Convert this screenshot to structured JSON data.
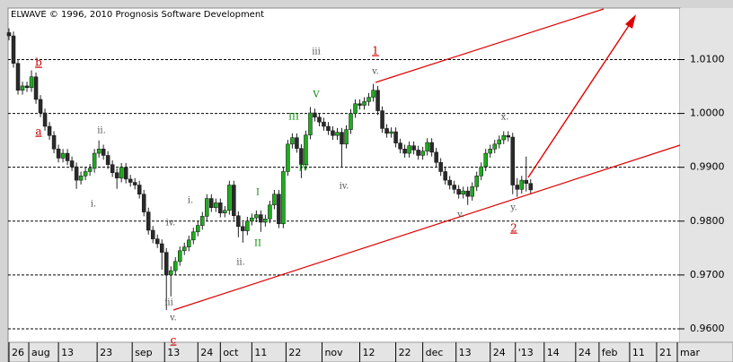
{
  "chart_data": {
    "type": "candlestick",
    "title": "ELWAVE © 1996, 2010 Prognosis Software Development",
    "xlim": [
      -0.2,
      149.2
    ],
    "ylim": [
      0.9575,
      1.0194
    ],
    "yticks": [
      {
        "value": 0.96,
        "label": "0.9600"
      },
      {
        "value": 0.97,
        "label": "0.9700"
      },
      {
        "value": 0.98,
        "label": "0.9800"
      },
      {
        "value": 0.99,
        "label": "0.9900"
      },
      {
        "value": 1.0,
        "label": "1.0000"
      },
      {
        "value": 1.01,
        "label": "1.0100"
      }
    ],
    "xticks": [
      {
        "value": 0,
        "label": "26"
      },
      {
        "value": 4.4,
        "label": "aug"
      },
      {
        "value": 11,
        "label": "13"
      },
      {
        "value": 19.6,
        "label": "23"
      },
      {
        "value": 27.4,
        "label": "sep"
      },
      {
        "value": 34.6,
        "label": "13"
      },
      {
        "value": 42,
        "label": "24"
      },
      {
        "value": 47,
        "label": "oct"
      },
      {
        "value": 54,
        "label": "11"
      },
      {
        "value": 61.6,
        "label": "22"
      },
      {
        "value": 69.6,
        "label": "nov"
      },
      {
        "value": 78,
        "label": "12"
      },
      {
        "value": 86,
        "label": "22"
      },
      {
        "value": 92,
        "label": "dec"
      },
      {
        "value": 99.4,
        "label": "13"
      },
      {
        "value": 107,
        "label": "24"
      },
      {
        "value": 112.6,
        "label": "'13"
      },
      {
        "value": 119,
        "label": "14"
      },
      {
        "value": 126,
        "label": "24"
      },
      {
        "value": 131.2,
        "label": "feb"
      },
      {
        "value": 138,
        "label": "11"
      },
      {
        "value": 144,
        "label": "21"
      },
      {
        "value": 148.6,
        "label": "mar"
      }
    ],
    "grid": true,
    "up_color": "#1faa1f",
    "down_color": "#2a2a2a",
    "open": [
      1.015,
      1.0144,
      1.0093,
      1.0043,
      1.0051,
      1.0048,
      1.0068,
      1.0026,
      1.0001,
      0.9976,
      0.9959,
      0.9934,
      0.9917,
      0.9926,
      0.9912,
      0.9901,
      0.9876,
      0.9884,
      0.9892,
      0.9898,
      0.9926,
      0.9934,
      0.9922,
      0.9905,
      0.989,
      0.988,
      0.99,
      0.9878,
      0.9872,
      0.9867,
      0.985,
      0.9817,
      0.9783,
      0.9767,
      0.9758,
      0.9742,
      0.97,
      0.9708,
      0.9725,
      0.9745,
      0.9752,
      0.9765,
      0.978,
      0.9792,
      0.9809,
      0.9842,
      0.9825,
      0.9834,
      0.9815,
      0.982,
      0.9867,
      0.981,
      0.979,
      0.9782,
      0.98,
      0.9806,
      0.9812,
      0.9798,
      0.9804,
      0.983,
      0.985,
      0.9795,
      0.9892,
      0.9943,
      0.9955,
      0.9935,
      0.9905,
      0.996,
      1.0001,
      0.9993,
      0.9984,
      0.9976,
      0.9968,
      0.9959,
      0.9965,
      0.9943,
      0.997,
      1.0,
      1.0018,
      1.0015,
      1.0022,
      1.003,
      1.0043,
      1.0005,
      0.9972,
      0.9963,
      0.9966,
      0.9945,
      0.9934,
      0.9926,
      0.994,
      0.9932,
      0.9922,
      0.993,
      0.9946,
      0.9928,
      0.9909,
      0.9892,
      0.9876,
      0.9867,
      0.9859,
      0.985,
      0.9856,
      0.9846,
      0.9864,
      0.9884,
      0.9901,
      0.9926,
      0.9934,
      0.9943,
      0.9951,
      0.9959,
      0.9956,
      0.9867,
      0.9859,
      0.9876,
      0.987
    ],
    "high": [
      1.0158,
      1.0152,
      1.0101,
      1.0059,
      1.0059,
      1.008,
      1.0076,
      1.0034,
      1.0009,
      0.9984,
      0.9967,
      0.9942,
      0.9934,
      0.9934,
      0.992,
      0.9909,
      0.9892,
      0.99,
      0.9906,
      0.9934,
      0.995,
      0.9942,
      0.993,
      0.9913,
      0.9898,
      0.9908,
      0.9908,
      0.9886,
      0.988,
      0.9875,
      0.9858,
      0.9825,
      0.9791,
      0.9775,
      0.9766,
      0.975,
      0.9716,
      0.9733,
      0.9753,
      0.976,
      0.9773,
      0.9788,
      0.98,
      0.9817,
      0.985,
      0.985,
      0.9842,
      0.9842,
      0.9828,
      0.9875,
      0.9875,
      0.9818,
      0.9798,
      0.9808,
      0.9814,
      0.982,
      0.982,
      0.9812,
      0.9838,
      0.9858,
      0.9858,
      0.99,
      0.9951,
      0.9963,
      0.9963,
      0.9943,
      0.9968,
      1.0012,
      1.0009,
      1.0001,
      0.9992,
      0.9984,
      0.9976,
      0.9973,
      0.9973,
      0.9978,
      1.0008,
      1.0026,
      1.0026,
      1.003,
      1.0038,
      1.0055,
      1.0051,
      1.0013,
      0.998,
      0.9974,
      0.9974,
      0.9953,
      0.9942,
      0.9948,
      0.9948,
      0.994,
      0.9938,
      0.9954,
      0.9954,
      0.9936,
      0.9917,
      0.99,
      0.9884,
      0.9875,
      0.9867,
      0.9864,
      0.9864,
      0.9872,
      0.9892,
      0.9909,
      0.9934,
      0.9942,
      0.9951,
      0.9959,
      0.9967,
      0.9967,
      0.9964,
      0.988,
      0.9884,
      0.992,
      0.9878
    ],
    "low": [
      1.0136,
      1.0085,
      1.0035,
      1.0035,
      1.004,
      1.004,
      1.0018,
      0.9993,
      0.9968,
      0.9951,
      0.9926,
      0.9909,
      0.9909,
      0.9904,
      0.9893,
      0.986,
      0.9868,
      0.9876,
      0.9884,
      0.989,
      0.9918,
      0.9914,
      0.9897,
      0.9882,
      0.986,
      0.9872,
      0.987,
      0.9864,
      0.9859,
      0.9842,
      0.9809,
      0.9775,
      0.9759,
      0.975,
      0.971,
      0.9635,
      0.966,
      0.97,
      0.9717,
      0.9737,
      0.9744,
      0.9757,
      0.9772,
      0.9784,
      0.9801,
      0.9817,
      0.9817,
      0.9807,
      0.9807,
      0.9812,
      0.9802,
      0.977,
      0.976,
      0.9774,
      0.9792,
      0.9798,
      0.978,
      0.979,
      0.9796,
      0.9822,
      0.9787,
      0.9787,
      0.9884,
      0.9935,
      0.9927,
      0.988,
      0.9897,
      0.9952,
      0.9985,
      0.9976,
      0.9968,
      0.996,
      0.9951,
      0.9951,
      0.99,
      0.9935,
      0.9962,
      0.9992,
      1.0007,
      1.0007,
      1.0014,
      1.0022,
      0.9997,
      0.9964,
      0.9955,
      0.9955,
      0.9937,
      0.9926,
      0.9918,
      0.9918,
      0.9924,
      0.9914,
      0.9914,
      0.9922,
      0.992,
      0.9901,
      0.9884,
      0.9868,
      0.9859,
      0.9851,
      0.9842,
      0.9842,
      0.983,
      0.9838,
      0.9856,
      0.9876,
      0.9893,
      0.9918,
      0.9926,
      0.9935,
      0.9943,
      0.9948,
      0.985,
      0.9845,
      0.9851,
      0.9855,
      0.985
    ],
    "close": [
      1.0144,
      1.0093,
      1.0043,
      1.0051,
      1.0048,
      1.0068,
      1.0026,
      1.0001,
      0.9976,
      0.9959,
      0.9934,
      0.9917,
      0.9926,
      0.9912,
      0.9901,
      0.9876,
      0.9884,
      0.9892,
      0.9898,
      0.9926,
      0.9934,
      0.9922,
      0.9905,
      0.989,
      0.988,
      0.99,
      0.9878,
      0.9872,
      0.9867,
      0.985,
      0.9817,
      0.9783,
      0.9767,
      0.9758,
      0.9742,
      0.97,
      0.9708,
      0.9725,
      0.9745,
      0.9752,
      0.9765,
      0.978,
      0.9792,
      0.9809,
      0.9842,
      0.9825,
      0.9834,
      0.9815,
      0.982,
      0.9867,
      0.981,
      0.979,
      0.9782,
      0.98,
      0.9806,
      0.9812,
      0.9798,
      0.9804,
      0.983,
      0.985,
      0.9795,
      0.9892,
      0.9943,
      0.9955,
      0.9935,
      0.9905,
      0.996,
      1.0001,
      0.9993,
      0.9984,
      0.9976,
      0.9968,
      0.9959,
      0.9965,
      0.9943,
      0.997,
      1.0,
      1.0018,
      1.0015,
      1.0022,
      1.003,
      1.0043,
      1.0005,
      0.9972,
      0.9963,
      0.9966,
      0.9945,
      0.9934,
      0.9926,
      0.994,
      0.9932,
      0.9922,
      0.993,
      0.9946,
      0.9928,
      0.9909,
      0.9892,
      0.9876,
      0.9867,
      0.9859,
      0.985,
      0.9856,
      0.9846,
      0.9864,
      0.9884,
      0.9901,
      0.9926,
      0.9934,
      0.9943,
      0.9951,
      0.9959,
      0.9956,
      0.9867,
      0.9859,
      0.9876,
      0.987,
      0.9858
    ],
    "annotations": [
      {
        "text": "b",
        "color": "#cc0000"
      },
      {
        "text": "a",
        "color": "#cc0000"
      },
      {
        "text": "ii.",
        "color": "#555555"
      },
      {
        "text": "i.",
        "color": "#555555"
      },
      {
        "text": "iv.",
        "color": "#555555"
      },
      {
        "text": "i.",
        "color": "#555555"
      },
      {
        "text": "iii",
        "color": "#555555"
      },
      {
        "text": "v.",
        "color": "#555555"
      },
      {
        "text": "c",
        "color": "#cc0000"
      },
      {
        "text": "ii.",
        "color": "#555555"
      },
      {
        "text": "I",
        "color": "#008800"
      },
      {
        "text": "II",
        "color": "#008800"
      },
      {
        "text": "III",
        "color": "#008800"
      },
      {
        "text": "IV",
        "color": "#008800"
      },
      {
        "text": "V",
        "color": "#008800"
      },
      {
        "text": "iii",
        "color": "#555555"
      },
      {
        "text": "iv.",
        "color": "#555555"
      },
      {
        "text": "v.",
        "color": "#555555"
      },
      {
        "text": "1",
        "color": "#cc0000"
      },
      {
        "text": "v.",
        "color": "#555555"
      },
      {
        "text": "x.",
        "color": "#555555"
      },
      {
        "text": "y.",
        "color": "#555555"
      },
      {
        "text": "2",
        "color": "#cc0000"
      }
    ]
  }
}
